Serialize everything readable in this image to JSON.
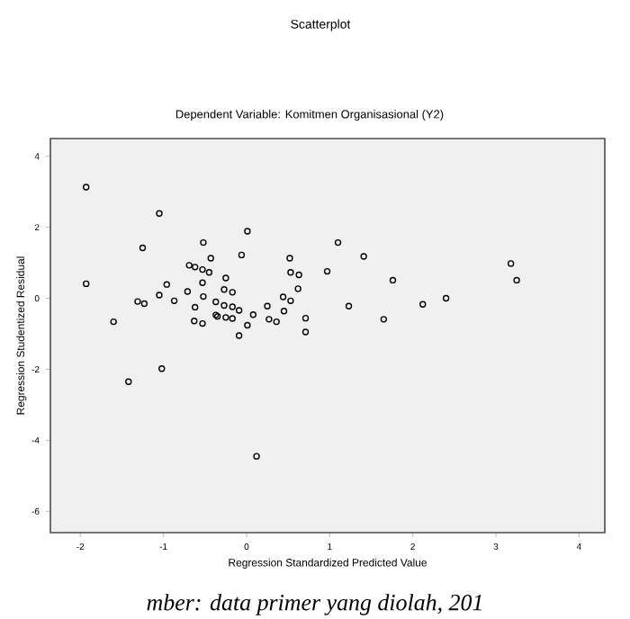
{
  "chart_data": {
    "type": "scatter",
    "title": "Scatterplot",
    "subtitle": "Dependent Variable: Komitmen Organisasional (Y2)",
    "xlabel": "Regression Standardized Predicted Value",
    "ylabel": "Regression Studentized Residual",
    "annotations": [
      "mber: data primer yang diolah, 201"
    ],
    "xlim": [
      -2.36,
      4.31
    ],
    "ylim": [
      -6.6,
      4.5
    ],
    "xticks": [
      -2,
      -1,
      0,
      1,
      2,
      3,
      4
    ],
    "yticks": [
      -6,
      -4,
      -2,
      0,
      2,
      4
    ],
    "grid": false,
    "marker": "circle",
    "series": [
      {
        "color": "#000000",
        "x": [
          -1.93,
          -1.93,
          -1.6,
          -1.05,
          -1.25,
          -1.31,
          -1.23,
          -1.05,
          -0.96,
          -0.87,
          -0.71,
          -0.69,
          -0.62,
          -0.53,
          -0.43,
          -0.45,
          -0.52,
          -0.53,
          -0.52,
          -0.62,
          -0.63,
          -0.53,
          -0.37,
          -0.37,
          -0.35,
          -0.27,
          -0.25,
          -0.25,
          -0.27,
          -0.17,
          -0.17,
          -0.17,
          -0.09,
          -0.09,
          0.01,
          -0.06,
          0.01,
          0.08,
          0.25,
          0.27,
          0.36,
          0.44,
          0.45,
          0.53,
          0.52,
          0.53,
          0.62,
          0.63,
          0.71,
          0.71,
          1.1,
          1.41,
          0.97,
          1.76,
          1.23,
          1.65,
          2.12,
          2.4,
          3.18,
          3.25,
          -1.42,
          -1.02,
          0.12
        ],
        "values": [
          3.13,
          0.41,
          -0.66,
          2.39,
          1.42,
          -0.09,
          -0.15,
          0.09,
          0.39,
          -0.07,
          0.19,
          0.93,
          0.88,
          0.81,
          1.13,
          0.73,
          1.57,
          0.44,
          0.05,
          -0.25,
          -0.64,
          -0.71,
          -0.1,
          -0.47,
          -0.51,
          -0.2,
          -0.54,
          0.57,
          0.25,
          0.17,
          -0.57,
          -0.24,
          -0.34,
          -1.05,
          -0.76,
          1.22,
          1.89,
          -0.46,
          -0.22,
          -0.59,
          -0.66,
          0.04,
          -0.36,
          -0.07,
          1.13,
          0.73,
          0.27,
          0.66,
          -0.56,
          -0.95,
          1.57,
          1.18,
          0.76,
          0.51,
          -0.22,
          -0.59,
          -0.17,
          0.0,
          0.98,
          0.51,
          -2.35,
          -1.98,
          -4.45
        ]
      }
    ]
  }
}
